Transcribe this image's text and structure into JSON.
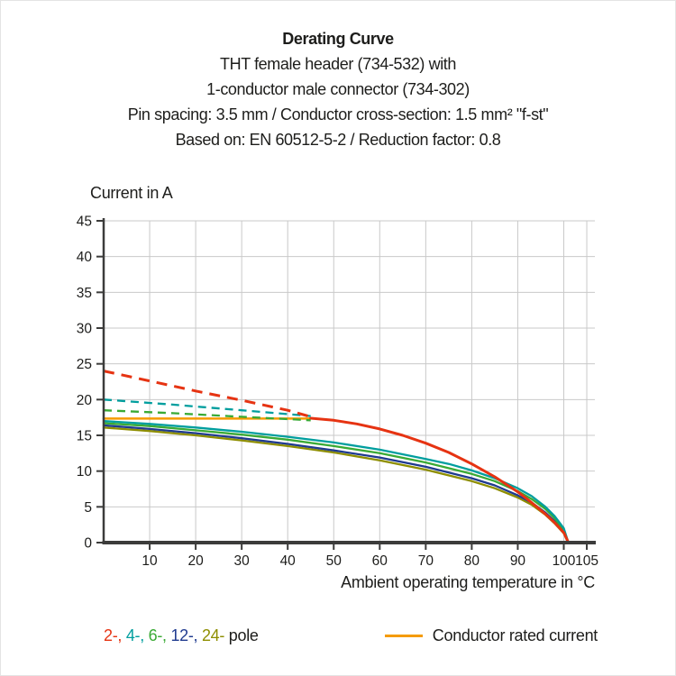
{
  "header": {
    "title": "Derating Curve",
    "subtitle_lines": [
      "THT female header (734-532) with",
      "1-conductor male connector (734-302)",
      "Pin spacing: 3.5 mm / Conductor cross-section: 1.5 mm² \"f-st\"",
      "Based on: EN 60512-5-2 / Reduction factor: 0.8"
    ]
  },
  "chart_data": {
    "type": "line",
    "title": "Derating Curve",
    "xlabel": "Ambient operating temperature in °C",
    "ylabel": "Current in A",
    "xlim": [
      0,
      107
    ],
    "ylim": [
      0,
      45
    ],
    "x_ticks": [
      10,
      20,
      30,
      40,
      50,
      60,
      70,
      80,
      90,
      100,
      105
    ],
    "y_ticks": [
      0,
      5,
      10,
      15,
      20,
      25,
      30,
      35,
      40,
      45
    ],
    "grid": true,
    "series": [
      {
        "id": "pole24-solid",
        "name": "24-pole derating curve",
        "color": "#8e8e00",
        "width": 2.3,
        "dash": null,
        "points": [
          [
            0,
            16.1
          ],
          [
            10,
            15.6
          ],
          [
            20,
            15.0
          ],
          [
            30,
            14.3
          ],
          [
            40,
            13.5
          ],
          [
            50,
            12.6
          ],
          [
            60,
            11.5
          ],
          [
            70,
            10.2
          ],
          [
            80,
            8.6
          ],
          [
            85,
            7.6
          ],
          [
            90,
            6.3
          ],
          [
            93,
            5.3
          ],
          [
            96,
            3.9
          ],
          [
            98,
            2.7
          ],
          [
            100,
            1.3
          ],
          [
            100.8,
            0.2
          ],
          [
            101,
            0
          ]
        ]
      },
      {
        "id": "pole12-solid",
        "name": "12-pole derating curve",
        "color": "#1f3a8f",
        "width": 2.3,
        "dash": null,
        "points": [
          [
            0,
            16.4
          ],
          [
            10,
            15.9
          ],
          [
            20,
            15.3
          ],
          [
            30,
            14.6
          ],
          [
            40,
            13.8
          ],
          [
            50,
            12.9
          ],
          [
            60,
            11.9
          ],
          [
            70,
            10.6
          ],
          [
            80,
            9.0
          ],
          [
            85,
            8.0
          ],
          [
            90,
            6.6
          ],
          [
            93,
            5.6
          ],
          [
            96,
            4.2
          ],
          [
            98,
            3.0
          ],
          [
            100,
            1.5
          ],
          [
            100.8,
            0.2
          ],
          [
            101,
            0
          ]
        ]
      },
      {
        "id": "pole6-solid",
        "name": "6-pole derating curve",
        "color": "#3aaa35",
        "width": 2.3,
        "dash": null,
        "points": [
          [
            0,
            16.7
          ],
          [
            10,
            16.3
          ],
          [
            20,
            15.7
          ],
          [
            30,
            15.1
          ],
          [
            40,
            14.4
          ],
          [
            50,
            13.5
          ],
          [
            60,
            12.5
          ],
          [
            70,
            11.2
          ],
          [
            80,
            9.6
          ],
          [
            85,
            8.6
          ],
          [
            90,
            7.2
          ],
          [
            93,
            6.1
          ],
          [
            96,
            4.7
          ],
          [
            98,
            3.4
          ],
          [
            100,
            1.8
          ],
          [
            100.8,
            0.3
          ],
          [
            101,
            0
          ]
        ]
      },
      {
        "id": "pole4-solid",
        "name": "4-pole derating curve",
        "color": "#009e9e",
        "width": 2.3,
        "dash": null,
        "points": [
          [
            0,
            17.0
          ],
          [
            10,
            16.6
          ],
          [
            20,
            16.1
          ],
          [
            30,
            15.5
          ],
          [
            40,
            14.8
          ],
          [
            50,
            14.0
          ],
          [
            60,
            13.0
          ],
          [
            70,
            11.7
          ],
          [
            75,
            11.0
          ],
          [
            80,
            10.1
          ],
          [
            85,
            9.0
          ],
          [
            90,
            7.6
          ],
          [
            93,
            6.5
          ],
          [
            96,
            5.0
          ],
          [
            98,
            3.7
          ],
          [
            100,
            2.0
          ],
          [
            100.8,
            0.4
          ],
          [
            101,
            0
          ]
        ]
      },
      {
        "id": "conductor-rated",
        "name": "Conductor rated current",
        "color": "#f59b00",
        "width": 2.5,
        "dash": null,
        "points": [
          [
            0,
            17.35
          ],
          [
            45,
            17.35
          ]
        ]
      },
      {
        "id": "pole2-solid",
        "name": "2-pole derating curve",
        "color": "#e63312",
        "width": 3,
        "dash": null,
        "points": [
          [
            45,
            17.4
          ],
          [
            50,
            17.1
          ],
          [
            55,
            16.6
          ],
          [
            60,
            15.9
          ],
          [
            65,
            15.0
          ],
          [
            70,
            13.9
          ],
          [
            75,
            12.6
          ],
          [
            80,
            11.0
          ],
          [
            85,
            9.2
          ],
          [
            90,
            7.1
          ],
          [
            93,
            5.6
          ],
          [
            96,
            4.0
          ],
          [
            98,
            2.8
          ],
          [
            100,
            1.4
          ],
          [
            100.8,
            0.3
          ],
          [
            101,
            0
          ]
        ]
      },
      {
        "id": "pole6-dashed",
        "name": "6-pole above conductor rating",
        "color": "#3aaa35",
        "width": 2.3,
        "dash": "9 6",
        "points": [
          [
            0,
            18.5
          ],
          [
            15,
            18.1
          ],
          [
            30,
            17.6
          ],
          [
            45,
            17.1
          ]
        ]
      },
      {
        "id": "pole4-dashed",
        "name": "4-pole above conductor rating",
        "color": "#009e9e",
        "width": 2.3,
        "dash": "9 6",
        "points": [
          [
            0,
            20.0
          ],
          [
            15,
            19.3
          ],
          [
            30,
            18.5
          ],
          [
            45,
            17.7
          ]
        ]
      },
      {
        "id": "pole2-dashed",
        "name": "2-pole above conductor rating",
        "color": "#e63312",
        "width": 3,
        "dash": "12 8",
        "points": [
          [
            0,
            24.0
          ],
          [
            10,
            22.6
          ],
          [
            20,
            21.2
          ],
          [
            30,
            19.9
          ],
          [
            40,
            18.5
          ],
          [
            45,
            17.6
          ]
        ]
      }
    ]
  },
  "legend": {
    "poles": [
      {
        "label": "2-,",
        "color": "#e63312"
      },
      {
        "label": "4-,",
        "color": "#009e9e"
      },
      {
        "label": "6-,",
        "color": "#3aaa35"
      },
      {
        "label": "12-,",
        "color": "#1f3a8f"
      },
      {
        "label": "24-",
        "color": "#8e8e00"
      }
    ],
    "poles_suffix": "pole",
    "conductor_label": "Conductor rated current",
    "conductor_color": "#f59b00"
  },
  "colors": {
    "axis": "#3c3c3b",
    "grid": "#c9c9c9",
    "text": "#1d1d1b",
    "background": "#ffffff"
  }
}
